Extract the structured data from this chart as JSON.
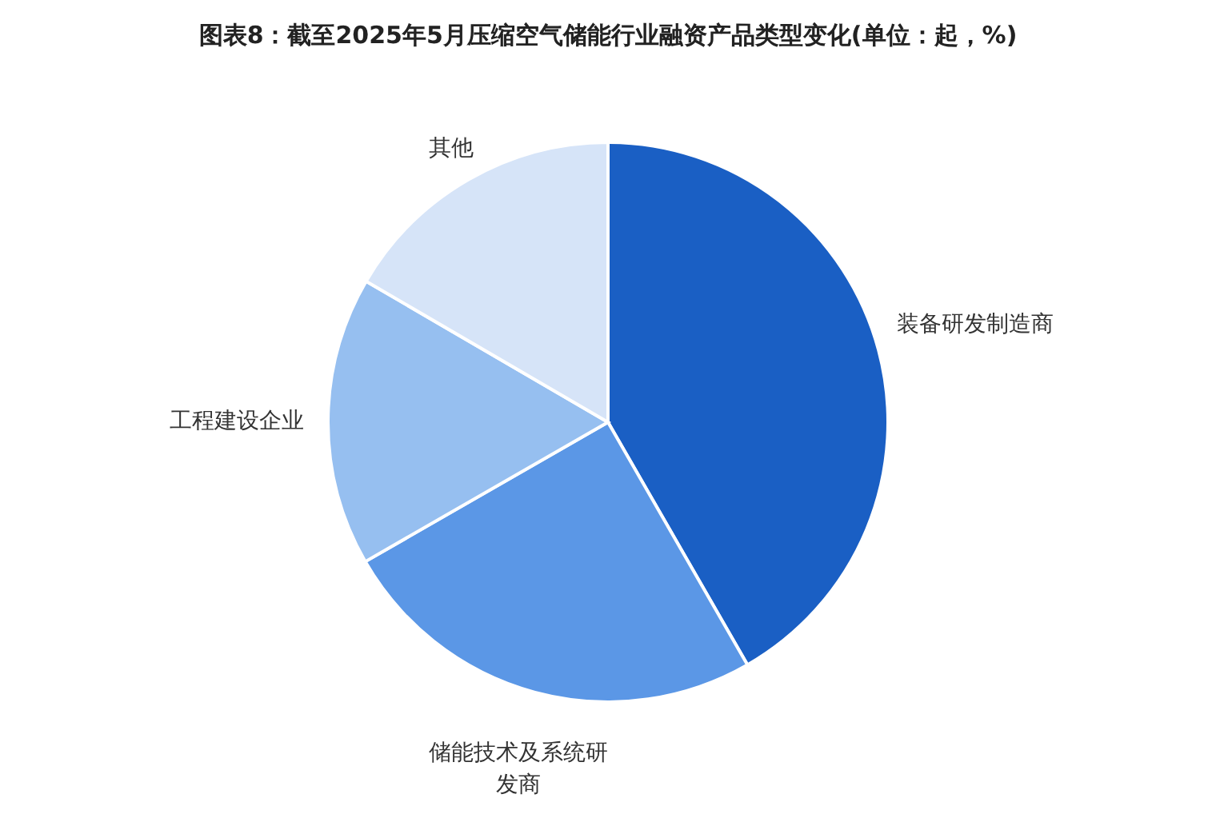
{
  "chart_data": {
    "type": "pie",
    "title": "图表8：截至2025年5月压缩空气储能行业融资产品类型变化(单位：起，%)",
    "categories": [
      "装备研发制造商",
      "储能技术及系统研发商",
      "工程建设企业",
      "其他"
    ],
    "values": [
      41.7,
      25,
      16.7,
      16.6
    ],
    "colors": [
      "#1a5fc4",
      "#5b97e6",
      "#96bff0",
      "#d6e4f8"
    ]
  }
}
